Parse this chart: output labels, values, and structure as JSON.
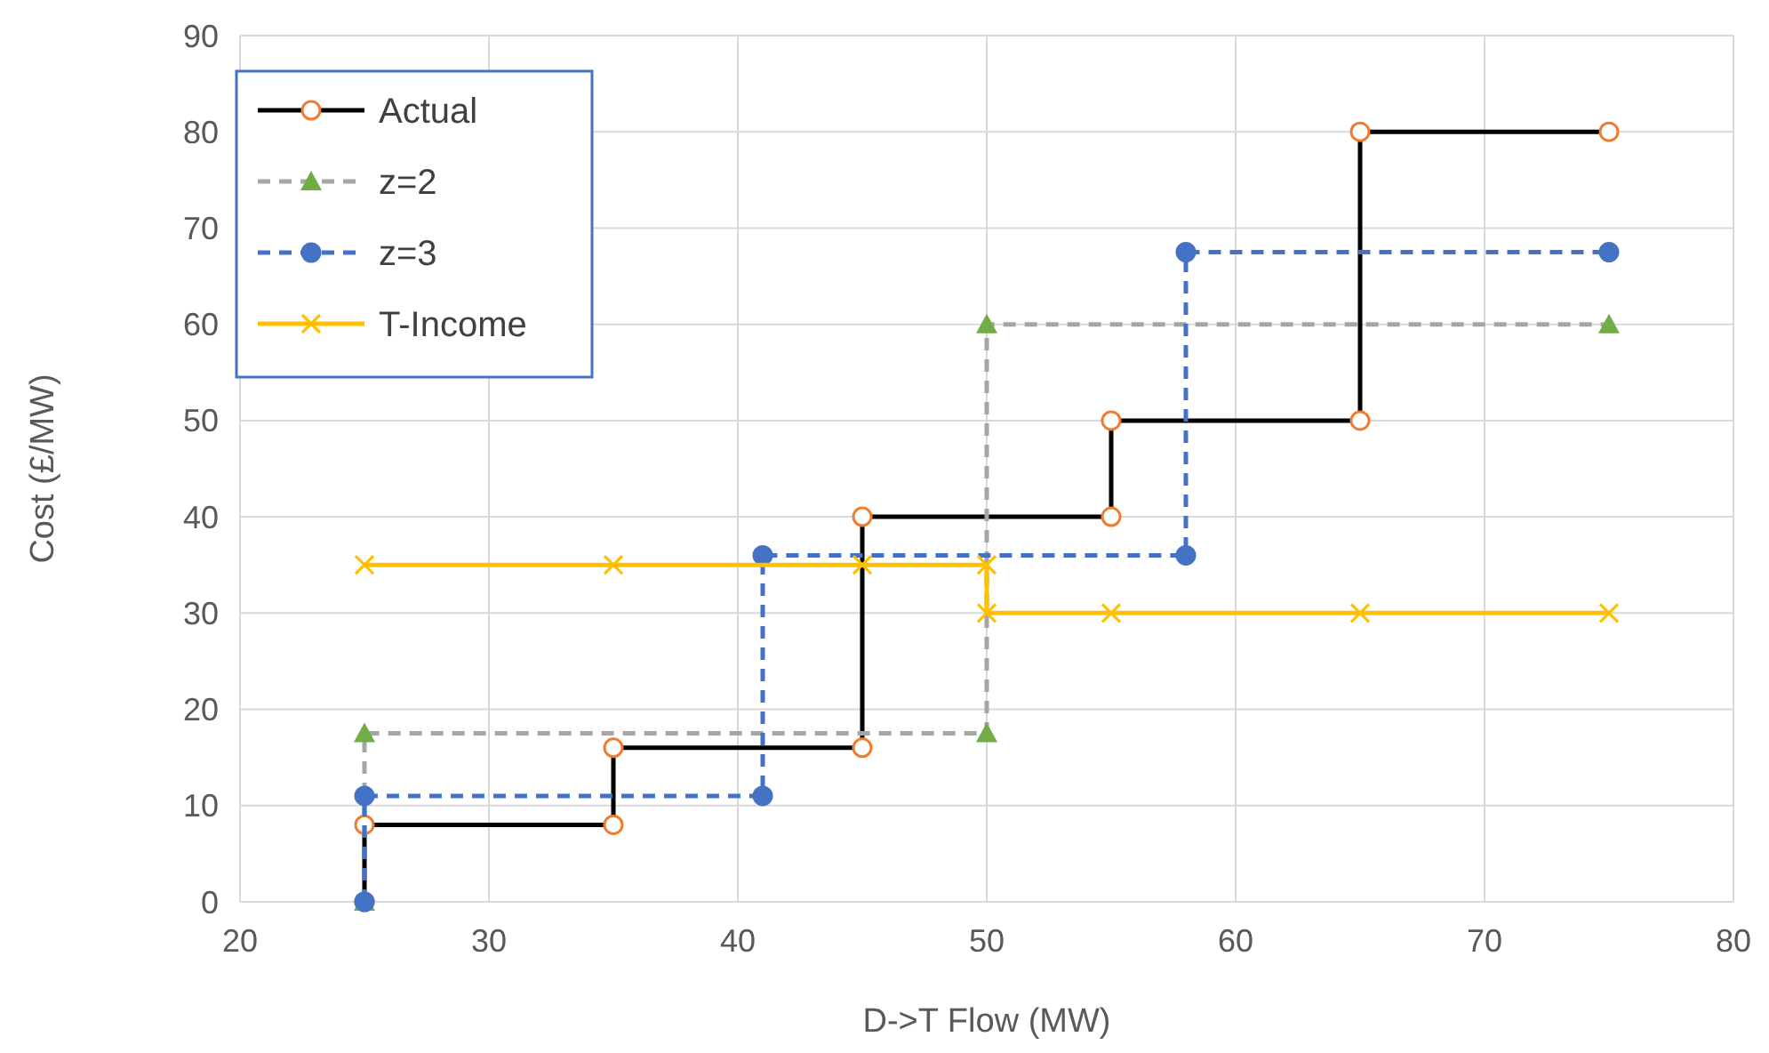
{
  "chart_data": {
    "type": "line",
    "xlabel": "D->T Flow (MW)",
    "ylabel": "Cost (£/MW)",
    "xlim": [
      20,
      80
    ],
    "xticks": [
      20,
      30,
      40,
      50,
      60,
      70,
      80
    ],
    "ylim": [
      0,
      90
    ],
    "yticks": [
      0,
      10,
      20,
      30,
      40,
      50,
      60,
      70,
      80,
      90
    ],
    "grid": true,
    "legend": "top left",
    "series": [
      {
        "name": "Actual",
        "color": "#000000",
        "colors": [
          "#ed7d31",
          "#ed7d31",
          "#ed7d31",
          "#ed7d31",
          "#ed7d31",
          "#ed7d31",
          "#ed7d31",
          "#ed7d31",
          "#ed7d31",
          "#ed7d31",
          "#ed7d31"
        ],
        "marker": "circle",
        "line_style": "solid",
        "x": [
          25,
          25,
          35,
          35,
          45,
          45,
          55,
          55,
          65,
          65,
          75
        ],
        "values": [
          0,
          8,
          8,
          16,
          16,
          40,
          40,
          50,
          50,
          80,
          80
        ]
      },
      {
        "name": "z=2",
        "color": "#a5a5a5",
        "colors": [
          "#70ad47",
          "#70ad47",
          "#70ad47",
          "#70ad47",
          "#70ad47"
        ],
        "marker": "triangle",
        "line_style": "dashed",
        "x": [
          25,
          25,
          50,
          50,
          75
        ],
        "values": [
          0,
          17.5,
          17.5,
          60,
          60
        ]
      },
      {
        "name": "z=3",
        "color": "#4472c4",
        "marker": "circle",
        "line_style": "dashed",
        "x": [
          25,
          25,
          41,
          41,
          58,
          58,
          75
        ],
        "values": [
          0,
          11,
          11,
          36,
          36,
          67.5,
          67.5
        ]
      },
      {
        "name": "T-Income",
        "color": "#ffc000",
        "marker": "cross",
        "line_style": "solid",
        "x": [
          25,
          35,
          45,
          50,
          50,
          55,
          65,
          75
        ],
        "values": [
          35,
          35,
          35,
          35,
          30,
          30,
          30,
          30
        ]
      }
    ]
  }
}
